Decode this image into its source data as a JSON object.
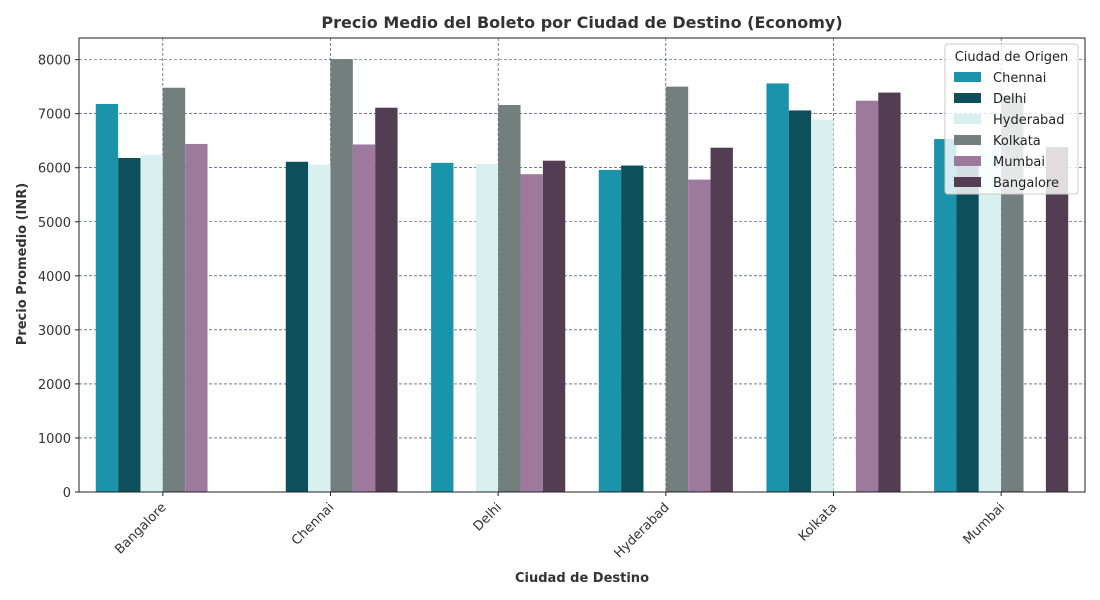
{
  "chart_data": {
    "type": "bar",
    "title": "Precio Medio del Boleto por Ciudad de Destino (Economy)",
    "xlabel": "Ciudad de Destino",
    "ylabel": "Precio Promedio (INR)",
    "categories": [
      "Bangalore",
      "Chennai",
      "Delhi",
      "Hyderabad",
      "Kolkata",
      "Mumbai"
    ],
    "yticks": [
      "0",
      "1000",
      "2000",
      "3000",
      "4000",
      "5000",
      "6000",
      "7000",
      "8000"
    ],
    "ylim": [
      0,
      8400
    ],
    "grid": true,
    "legend": {
      "title": "Ciudad de Origen",
      "position": "top-right"
    },
    "series": [
      {
        "name": "Chennai",
        "color": "#1b93ab",
        "values": [
          7180,
          null,
          6090,
          5960,
          7560,
          6530
        ]
      },
      {
        "name": "Delhi",
        "color": "#0e4f5c",
        "values": [
          6180,
          6110,
          null,
          6040,
          7060,
          6130
        ]
      },
      {
        "name": "Hyderabad",
        "color": "#d9f0f1",
        "values": [
          6240,
          6060,
          6070,
          null,
          6890,
          6430
        ]
      },
      {
        "name": "Kolkata",
        "color": "#727f7d",
        "values": [
          7480,
          8010,
          7160,
          7500,
          null,
          7330
        ]
      },
      {
        "name": "Mumbai",
        "color": "#9e799e",
        "values": [
          6440,
          6430,
          5880,
          5780,
          7240,
          null
        ]
      },
      {
        "name": "Bangalore",
        "color": "#523d52",
        "values": [
          null,
          7110,
          6130,
          6370,
          7390,
          6380
        ]
      }
    ]
  }
}
